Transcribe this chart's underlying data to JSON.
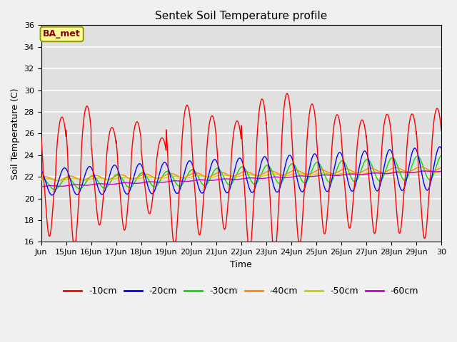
{
  "title": "Sentek Soil Temperature profile",
  "xlabel": "Time",
  "ylabel": "Soil Temperature (C)",
  "ylim": [
    16,
    36
  ],
  "annotation": "BA_met",
  "annotation_box_facecolor": "#FFFF99",
  "annotation_box_edgecolor": "#999900",
  "fig_facecolor": "#F0F0F0",
  "axes_facecolor": "#E0E0E0",
  "grid_color": "#FFFFFF",
  "series_colors": {
    "-10cm": "#FF0000",
    "-20cm": "#0000FF",
    "-30cm": "#00DD00",
    "-40cm": "#FF8800",
    "-50cm": "#CCCC00",
    "-60cm": "#CC00CC"
  },
  "num_days": 16,
  "points_per_day": 288,
  "xtick_labels": [
    "Jun",
    "15Jun",
    "16Jun",
    "17Jun",
    "18Jun",
    "19Jun",
    "20Jun",
    "21Jun",
    "22Jun",
    "23Jun",
    "24Jun",
    "25Jun",
    "26Jun",
    "27Jun",
    "28Jun",
    "29Jun",
    "30"
  ],
  "ytick_labels": [
    "16",
    "18",
    "20",
    "22",
    "24",
    "26",
    "28",
    "30",
    "32",
    "34",
    "36"
  ]
}
